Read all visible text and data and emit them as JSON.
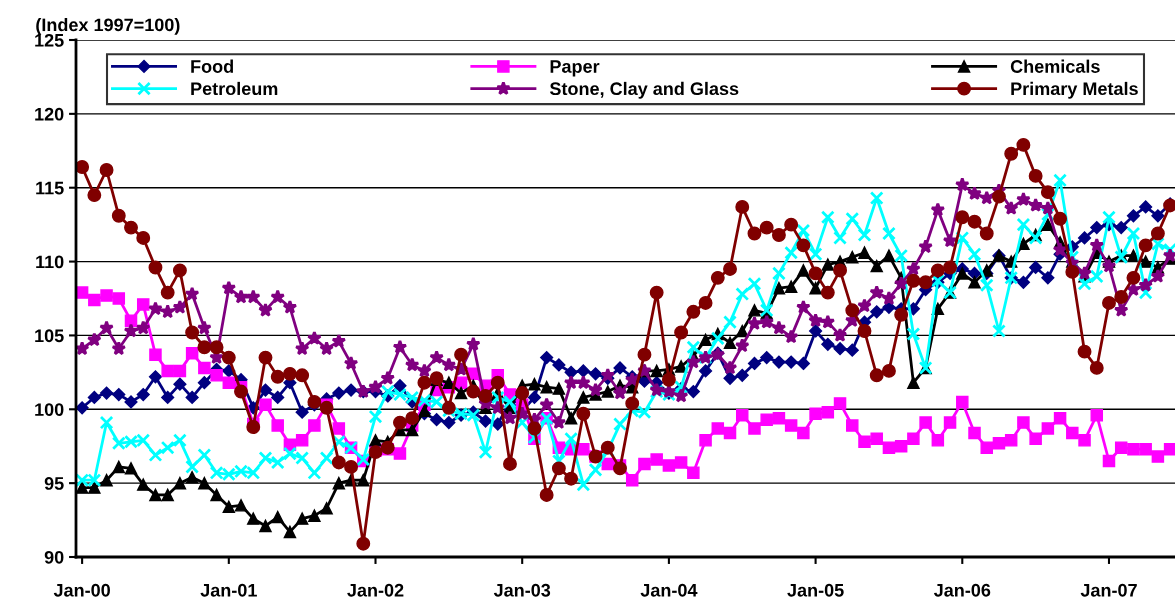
{
  "chart_data": {
    "type": "line",
    "ylabel": "(Index 1997=100)",
    "categories": [
      "Jan-00",
      null,
      null,
      null,
      null,
      null,
      null,
      null,
      null,
      null,
      null,
      null,
      "Jan-01",
      null,
      null,
      null,
      null,
      null,
      null,
      null,
      null,
      null,
      null,
      null,
      "Jan-02",
      null,
      null,
      null,
      null,
      null,
      null,
      null,
      null,
      null,
      null,
      null,
      "Jan-03",
      null,
      null,
      null,
      null,
      null,
      null,
      null,
      null,
      null,
      null,
      null,
      "Jan-04",
      null,
      null,
      null,
      null,
      null,
      null,
      null,
      null,
      null,
      null,
      null,
      "Jan-05",
      null,
      null,
      null,
      null,
      null,
      null,
      null,
      null,
      null,
      null,
      null,
      "Jan-06",
      null,
      null,
      null,
      null,
      null,
      null,
      null,
      null,
      null,
      null,
      null,
      "Jan-07",
      null,
      null,
      null,
      null,
      null
    ],
    "series": [
      {
        "name": "Food",
        "color": "#000080",
        "marker": "diamond",
        "values": [
          100.1,
          100.8,
          101.1,
          101.0,
          100.5,
          101.0,
          102.2,
          100.8,
          101.7,
          100.8,
          101.8,
          102.7,
          102.6,
          102.0,
          100.1,
          101.3,
          100.8,
          101.8,
          99.8,
          100.3,
          100.7,
          101.1,
          101.3,
          101.2,
          101.2,
          100.9,
          101.6,
          100.5,
          99.7,
          99.3,
          99.1,
          99.6,
          99.8,
          99.2,
          99.0,
          100.5,
          99.9,
          100.8,
          103.5,
          103.0,
          102.5,
          102.6,
          102.4,
          102.1,
          102.8,
          102.2,
          101.9,
          101.8,
          101.1,
          101.4,
          101.2,
          102.6,
          103.8,
          102.1,
          102.3,
          103.1,
          103.5,
          103.2,
          103.2,
          103.1,
          105.3,
          104.4,
          104.1,
          104.0,
          105.9,
          106.6,
          106.9,
          106.8,
          106.8,
          108.1,
          108.6,
          109.2,
          109.5,
          109.2,
          109.2,
          110.4,
          108.9,
          108.6,
          109.6,
          108.9,
          110.5,
          111.0,
          111.6,
          112.3,
          112.5,
          112.3,
          113.1,
          113.7,
          113.1,
          113.9
        ]
      },
      {
        "name": "Paper",
        "color": "#ff00ff",
        "marker": "square",
        "values": [
          107.9,
          107.4,
          107.7,
          107.5,
          106.0,
          107.1,
          103.7,
          102.6,
          102.6,
          103.8,
          102.8,
          102.3,
          101.8,
          101.5,
          99.0,
          100.3,
          98.9,
          97.6,
          97.9,
          98.9,
          100.3,
          98.7,
          97.4,
          96.5,
          97.2,
          97.3,
          97.0,
          98.9,
          100.3,
          101.3,
          101.5,
          101.8,
          102.4,
          101.6,
          102.3,
          101.0,
          100.3,
          98.0,
          99.4,
          97.4,
          97.3,
          97.3,
          96.8,
          96.3,
          96.2,
          95.2,
          96.3,
          96.6,
          96.2,
          96.4,
          95.7,
          97.9,
          98.7,
          98.4,
          99.6,
          98.7,
          99.3,
          99.4,
          98.9,
          98.4,
          99.7,
          99.8,
          100.4,
          98.9,
          97.8,
          98.0,
          97.4,
          97.5,
          98.0,
          99.1,
          97.9,
          99.1,
          100.5,
          98.4,
          97.4,
          97.7,
          97.9,
          99.1,
          98.0,
          98.7,
          99.4,
          98.4,
          97.9,
          99.6,
          96.5,
          97.4,
          97.3,
          97.3,
          96.8,
          97.3
        ]
      },
      {
        "name": "Chemicals",
        "color": "#000000",
        "marker": "triangle",
        "values": [
          94.7,
          94.7,
          95.2,
          96.1,
          96.0,
          94.9,
          94.2,
          94.2,
          95.0,
          95.4,
          95.0,
          94.2,
          93.4,
          93.5,
          92.6,
          92.1,
          92.7,
          91.7,
          92.6,
          92.8,
          93.3,
          95.0,
          95.2,
          95.2,
          97.9,
          97.8,
          98.6,
          98.6,
          99.9,
          102.0,
          101.8,
          101.1,
          101.6,
          100.1,
          101.1,
          100.1,
          101.6,
          101.7,
          101.5,
          101.4,
          99.4,
          100.8,
          101.0,
          101.2,
          101.6,
          101.5,
          102.6,
          102.6,
          102.7,
          102.9,
          103.6,
          104.7,
          105.1,
          104.5,
          105.3,
          106.7,
          106.5,
          108.2,
          108.3,
          109.4,
          108.2,
          109.8,
          110.0,
          110.3,
          110.6,
          109.7,
          110.4,
          108.9,
          101.8,
          102.8,
          106.8,
          107.9,
          109.2,
          108.6,
          109.4,
          110.4,
          110.0,
          111.2,
          111.8,
          112.5,
          111.3,
          110.0,
          109.0,
          110.6,
          110.0,
          110.4,
          110.4,
          110.0,
          109.6,
          110.2
        ]
      },
      {
        "name": "Petroleum",
        "color": "#00ffff",
        "marker": "cross",
        "values": [
          95.2,
          95.2,
          99.1,
          97.7,
          97.8,
          97.9,
          96.9,
          97.4,
          97.9,
          96.1,
          96.9,
          95.7,
          95.6,
          95.8,
          95.7,
          96.7,
          96.4,
          97.0,
          96.7,
          95.7,
          96.7,
          97.8,
          97.4,
          96.6,
          99.5,
          101.2,
          101.0,
          100.8,
          100.6,
          100.5,
          99.9,
          99.7,
          99.6,
          97.1,
          100.8,
          100.5,
          99.1,
          98.1,
          99.4,
          96.5,
          98.0,
          94.9,
          95.9,
          97.2,
          99.0,
          99.9,
          99.8,
          101.2,
          101.0,
          101.5,
          104.2,
          103.5,
          104.8,
          105.9,
          107.8,
          108.5,
          106.7,
          109.2,
          110.6,
          112.1,
          110.5,
          113.0,
          111.6,
          112.9,
          111.8,
          114.3,
          111.9,
          110.4,
          105.1,
          102.8,
          108.7,
          107.9,
          111.6,
          110.5,
          108.4,
          105.3,
          108.9,
          112.5,
          111.6,
          113.2,
          115.5,
          110.3,
          108.5,
          109.0,
          113.0,
          110.3,
          111.9,
          107.9,
          111.2,
          110.8
        ]
      },
      {
        "name": "Stone, Clay and Glass",
        "color": "#800080",
        "marker": "star",
        "values": [
          104.1,
          104.7,
          105.5,
          104.1,
          105.3,
          105.5,
          106.8,
          106.6,
          106.9,
          107.8,
          105.5,
          103.5,
          108.2,
          107.6,
          107.6,
          106.7,
          107.6,
          106.9,
          104.1,
          104.8,
          104.1,
          104.6,
          103.1,
          101.2,
          101.5,
          102.1,
          104.2,
          103.0,
          102.6,
          103.5,
          103.0,
          102.7,
          104.4,
          100.4,
          100.1,
          99.4,
          99.7,
          99.3,
          100.3,
          99.1,
          101.8,
          101.8,
          101.3,
          102.3,
          101.1,
          102.0,
          102.6,
          101.3,
          101.2,
          100.9,
          103.2,
          103.5,
          103.7,
          102.8,
          104.3,
          105.8,
          105.9,
          105.5,
          104.9,
          106.9,
          106.0,
          105.9,
          105.0,
          106.0,
          107.0,
          107.9,
          107.5,
          108.5,
          109.5,
          111.0,
          113.5,
          111.4,
          115.2,
          114.6,
          114.3,
          114.8,
          113.6,
          114.2,
          113.8,
          113.6,
          110.8,
          109.9,
          109.2,
          111.1,
          109.7,
          106.7,
          108.1,
          108.4,
          109.0,
          110.4
        ]
      },
      {
        "name": "Primary Metals",
        "color": "#800000",
        "marker": "circle",
        "values": [
          116.4,
          114.5,
          116.2,
          113.1,
          112.3,
          111.6,
          109.6,
          107.9,
          109.4,
          105.2,
          104.2,
          104.2,
          103.5,
          101.2,
          98.8,
          103.5,
          102.2,
          102.4,
          102.3,
          100.5,
          100.1,
          96.4,
          96.1,
          90.9,
          97.1,
          97.4,
          99.1,
          99.4,
          101.8,
          102.1,
          100.1,
          103.7,
          101.2,
          100.9,
          101.8,
          96.3,
          101.1,
          98.7,
          94.2,
          96.0,
          95.3,
          99.7,
          96.8,
          97.4,
          96.0,
          100.4,
          103.7,
          107.9,
          102.0,
          105.2,
          106.6,
          107.2,
          108.9,
          109.5,
          113.7,
          111.9,
          112.3,
          111.8,
          112.5,
          111.1,
          109.2,
          107.9,
          109.4,
          106.7,
          105.3,
          102.3,
          102.6,
          106.4,
          108.7,
          108.6,
          109.4,
          109.6,
          113.0,
          112.7,
          111.9,
          114.4,
          117.3,
          117.9,
          115.8,
          114.7,
          112.9,
          109.3,
          103.9,
          102.8,
          107.2,
          107.6,
          108.9,
          111.1,
          111.9,
          113.8
        ]
      }
    ],
    "ylim": [
      90,
      125
    ],
    "yticks": [
      90,
      95,
      100,
      105,
      110,
      115,
      120,
      125
    ],
    "grid": "y",
    "legend": "top",
    "line_style": "solid"
  }
}
